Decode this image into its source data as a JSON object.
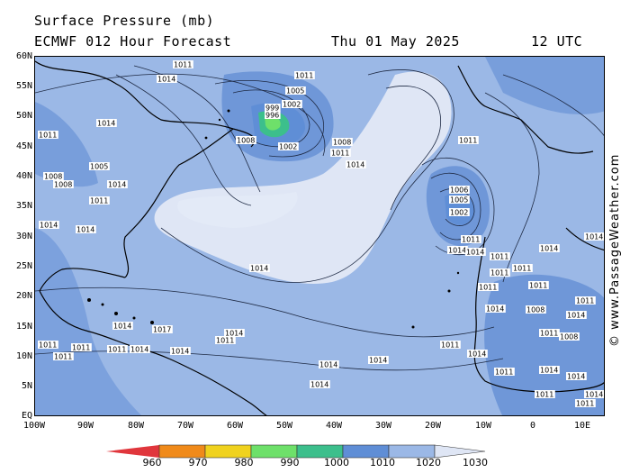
{
  "header": {
    "title": "Surface Pressure (mb)",
    "model": "ECMWF 012 Hour Forecast",
    "date": "Thu 01 May 2025",
    "time": "12 UTC"
  },
  "credit": "© www.PassageWeather.com",
  "lat_labels": [
    "60N",
    "55N",
    "50N",
    "45N",
    "40N",
    "35N",
    "30N",
    "25N",
    "20N",
    "15N",
    "10N",
    "5N",
    "EQ"
  ],
  "lon_labels": [
    "100W",
    "90W",
    "80W",
    "70W",
    "60W",
    "50W",
    "40W",
    "30W",
    "20W",
    "10W",
    "0",
    "10E"
  ],
  "colorbar": {
    "labels": [
      "960",
      "970",
      "980",
      "990",
      "1000",
      "1010",
      "1020",
      "1030"
    ],
    "colors": [
      "#e0363c",
      "#f08a1a",
      "#f0d21e",
      "#6ee06a",
      "#3cbf8c",
      "#5f8ed6",
      "#9bb8e6",
      "#dfe6f5"
    ]
  },
  "isobar_labels": [
    {
      "t": "1011"
    },
    {
      "t": "1014"
    },
    {
      "t": "1011"
    },
    {
      "t": "1005"
    },
    {
      "t": "1002"
    },
    {
      "t": "999"
    },
    {
      "t": "996"
    },
    {
      "t": "1008"
    },
    {
      "t": "1002"
    },
    {
      "t": "1008"
    },
    {
      "t": "1011"
    },
    {
      "t": "1014"
    },
    {
      "t": "1014"
    },
    {
      "t": "1011"
    },
    {
      "t": "1005"
    },
    {
      "t": "1008"
    },
    {
      "t": "1008"
    },
    {
      "t": "1011"
    },
    {
      "t": "1014"
    },
    {
      "t": "1014"
    },
    {
      "t": "1014"
    },
    {
      "t": "1014"
    },
    {
      "t": "1014"
    },
    {
      "t": "1014"
    },
    {
      "t": "1014"
    },
    {
      "t": "1014"
    },
    {
      "t": "1011"
    },
    {
      "t": "1006"
    },
    {
      "t": "1005"
    },
    {
      "t": "1002"
    },
    {
      "t": "1011"
    },
    {
      "t": "1014"
    },
    {
      "t": "1014"
    },
    {
      "t": "1011"
    },
    {
      "t": "1011"
    },
    {
      "t": "1014"
    },
    {
      "t": "1011"
    },
    {
      "t": "1011"
    },
    {
      "t": "1014"
    },
    {
      "t": "1011"
    },
    {
      "t": "1008"
    },
    {
      "t": "1008"
    },
    {
      "t": "1011"
    },
    {
      "t": "1011"
    },
    {
      "t": "1014"
    },
    {
      "t": "1011"
    },
    {
      "t": "1011"
    },
    {
      "t": "1014"
    },
    {
      "t": "1017"
    },
    {
      "t": "1011"
    },
    {
      "t": "1011"
    },
    {
      "t": "1014"
    },
    {
      "t": "1014"
    },
    {
      "t": "1011"
    },
    {
      "t": "1011"
    },
    {
      "t": "1014"
    },
    {
      "t": "1014"
    },
    {
      "t": "1011"
    },
    {
      "t": "1014"
    },
    {
      "t": "1014"
    },
    {
      "t": "1011"
    },
    {
      "t": "1011"
    },
    {
      "t": "1014"
    }
  ]
}
